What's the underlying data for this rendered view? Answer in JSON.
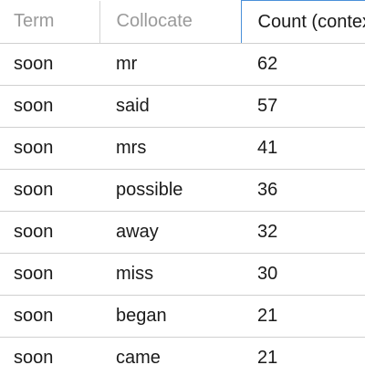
{
  "table": {
    "headers": {
      "term": "Term",
      "collocate": "Collocate",
      "count": "Count (context)"
    },
    "rows": [
      {
        "term": "soon",
        "collocate": "mr",
        "count": "62"
      },
      {
        "term": "soon",
        "collocate": "said",
        "count": "57"
      },
      {
        "term": "soon",
        "collocate": "mrs",
        "count": "41"
      },
      {
        "term": "soon",
        "collocate": "possible",
        "count": "36"
      },
      {
        "term": "soon",
        "collocate": "away",
        "count": "32"
      },
      {
        "term": "soon",
        "collocate": "miss",
        "count": "30"
      },
      {
        "term": "soon",
        "collocate": "began",
        "count": "21"
      },
      {
        "term": "soon",
        "collocate": "came",
        "count": "21"
      }
    ]
  }
}
